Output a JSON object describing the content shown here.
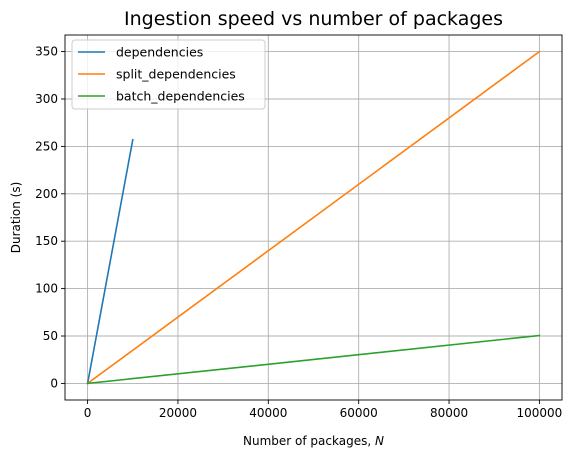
{
  "chart_data": {
    "type": "line",
    "title": "Ingestion speed vs number of packages",
    "xlabel": "Number of packages, N",
    "xlabel_prefix": "Number of packages, ",
    "xlabel_var": "N",
    "ylabel": "Duration (s)",
    "xlim": [
      -5000,
      105000
    ],
    "ylim": [
      -17.5,
      367.5
    ],
    "grid": true,
    "legend_position": "top-left",
    "x_ticks": [
      0,
      20000,
      40000,
      60000,
      80000,
      100000
    ],
    "x_tick_labels": [
      "0",
      "20000",
      "40000",
      "60000",
      "80000",
      "100000"
    ],
    "y_ticks": [
      0,
      50,
      100,
      150,
      200,
      250,
      300,
      350
    ],
    "y_tick_labels": [
      "0",
      "50",
      "100",
      "150",
      "200",
      "250",
      "300",
      "350"
    ],
    "series": [
      {
        "name": "dependencies",
        "color": "#1f77b4",
        "x": [
          0,
          10000
        ],
        "y": [
          0,
          257
        ]
      },
      {
        "name": "split_dependencies",
        "color": "#ff7f0e",
        "x": [
          0,
          100000
        ],
        "y": [
          0,
          350
        ]
      },
      {
        "name": "batch_dependencies",
        "color": "#2ca02c",
        "x": [
          0,
          100000
        ],
        "y": [
          0,
          50.5
        ]
      }
    ]
  }
}
